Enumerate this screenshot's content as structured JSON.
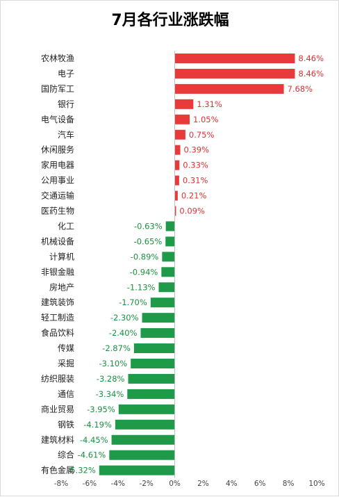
{
  "chart_data": {
    "type": "bar",
    "orientation": "horizontal",
    "title": "7月各行业涨跌幅",
    "categories": [
      "农林牧渔",
      "电子",
      "国防军工",
      "银行",
      "电气设备",
      "汽车",
      "休闲服务",
      "家用电器",
      "公用事业",
      "交通运输",
      "医药生物",
      "化工",
      "机械设备",
      "计算机",
      "非银金融",
      "房地产",
      "建筑装饰",
      "轻工制造",
      "食品饮料",
      "传媒",
      "采掘",
      "纺织服装",
      "通信",
      "商业贸易",
      "钢铁",
      "建筑材料",
      "综合",
      "有色金属"
    ],
    "values": [
      8.46,
      8.46,
      7.68,
      1.31,
      1.05,
      0.75,
      0.39,
      0.33,
      0.31,
      0.21,
      0.09,
      -0.63,
      -0.65,
      -0.89,
      -0.94,
      -1.13,
      -1.7,
      -2.3,
      -2.4,
      -2.87,
      -3.1,
      -3.28,
      -3.34,
      -3.95,
      -4.19,
      -4.45,
      -4.61,
      -5.32
    ],
    "labels": [
      "8.46%",
      "8.46%",
      "7.68%",
      "1.31%",
      "1.05%",
      "0.75%",
      "0.39%",
      "0.33%",
      "0.31%",
      "0.21%",
      "0.09%",
      "-0.63%",
      "-0.65%",
      "-0.89%",
      "-0.94%",
      "-1.13%",
      "-1.70%",
      "-2.30%",
      "-2.40%",
      "-2.87%",
      "-3.10%",
      "-3.28%",
      "-3.34%",
      "-3.95%",
      "-4.19%",
      "-4.45%",
      "-4.61%",
      "-5.32%"
    ],
    "xlim": [
      -8,
      10
    ],
    "xticks": [
      "-8%",
      "-6%",
      "-4%",
      "-2%",
      "0%",
      "2%",
      "4%",
      "6%",
      "8%",
      "10%"
    ],
    "grid": false,
    "legend": "none",
    "colors": {
      "positive": "#e83a3a",
      "negative": "#1f9a49"
    }
  }
}
